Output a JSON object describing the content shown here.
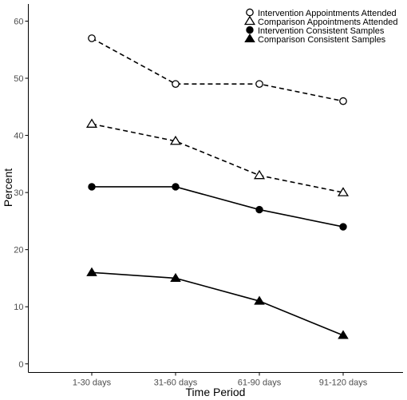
{
  "chart_data": {
    "type": "line",
    "title": "",
    "xlabel": "Time Period",
    "ylabel": "Percent",
    "categories": [
      "1-30 days",
      "31-60 days",
      "61-90 days",
      "91-120 days"
    ],
    "ylim": [
      -1.5,
      63
    ],
    "yticks": [
      0,
      10,
      20,
      30,
      40,
      50,
      60
    ],
    "grid": false,
    "legend_position": "top-right",
    "series": [
      {
        "name": "Intervention Appointments Attended",
        "values": [
          57,
          49,
          49,
          46
        ],
        "marker": "open-circle",
        "line_style": "dashed",
        "color": "#000000"
      },
      {
        "name": "Comparison Appointments Attended",
        "values": [
          42,
          39,
          33,
          30
        ],
        "marker": "open-triangle",
        "line_style": "dashed",
        "color": "#000000"
      },
      {
        "name": "Intervention Consistent Samples",
        "values": [
          31,
          31,
          27,
          24
        ],
        "marker": "filled-circle",
        "line_style": "solid",
        "color": "#000000"
      },
      {
        "name": "Comparison Consistent Samples",
        "values": [
          16,
          15,
          11,
          5
        ],
        "marker": "filled-triangle",
        "line_style": "solid",
        "color": "#000000"
      }
    ]
  }
}
